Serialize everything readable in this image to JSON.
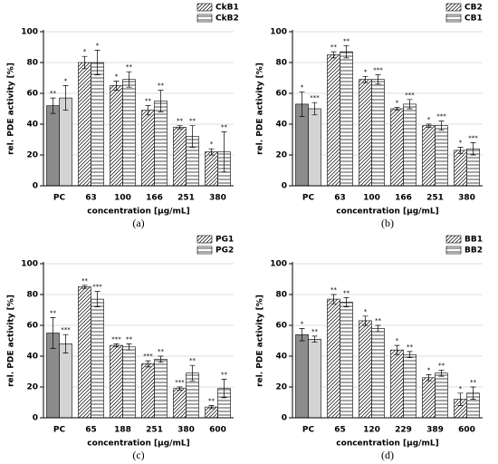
{
  "chart_data": [
    {
      "type": "bar",
      "label": "(a)",
      "xlabel": "concentration [µg/mL]",
      "ylabel": "rel. PDE activity [%]",
      "categories": [
        "PC",
        "63",
        "100",
        "166",
        "251",
        "380"
      ],
      "ylim": [
        0,
        100
      ],
      "yticks": [
        0,
        20,
        40,
        60,
        80,
        100
      ],
      "grid": true,
      "legend": "upper right",
      "series": [
        {
          "name": "CkB1",
          "colors": [
            "#8c8c8c",
            "#ffffff",
            "#ffffff",
            "#ffffff",
            "#ffffff",
            "#ffffff"
          ],
          "patterns": [
            "solid",
            "diagonal",
            "diagonal",
            "diagonal",
            "diagonal",
            "diagonal"
          ],
          "values": [
            52,
            80,
            65,
            49,
            38,
            22
          ],
          "errors": [
            5,
            4,
            3,
            3,
            1,
            2
          ],
          "significance": [
            "**",
            "*",
            "*",
            "**",
            "**",
            "*"
          ]
        },
        {
          "name": "CkB2",
          "colors": [
            "#d4d4d4",
            "#ffffff",
            "#ffffff",
            "#ffffff",
            "#ffffff",
            "#ffffff"
          ],
          "patterns": [
            "solid",
            "horizontal",
            "horizontal",
            "horizontal",
            "horizontal",
            "horizontal"
          ],
          "values": [
            57,
            80,
            69,
            55,
            32,
            22
          ],
          "errors": [
            8,
            8,
            5,
            7,
            7,
            13
          ],
          "significance": [
            "*",
            "*",
            "**",
            "**",
            "**",
            "**"
          ]
        }
      ]
    },
    {
      "type": "bar",
      "label": "(b)",
      "xlabel": "concentration [µg/mL]",
      "ylabel": "rel. PDE activity [%]",
      "categories": [
        "PC",
        "63",
        "100",
        "166",
        "251",
        "380"
      ],
      "ylim": [
        0,
        100
      ],
      "yticks": [
        0,
        20,
        40,
        60,
        80,
        100
      ],
      "grid": true,
      "legend": "upper right",
      "series": [
        {
          "name": "CB2",
          "colors": [
            "#8c8c8c",
            "#ffffff",
            "#ffffff",
            "#ffffff",
            "#ffffff",
            "#ffffff"
          ],
          "patterns": [
            "solid",
            "diagonal",
            "diagonal",
            "diagonal",
            "diagonal",
            "diagonal"
          ],
          "values": [
            53,
            85,
            69,
            50,
            39,
            23
          ],
          "errors": [
            8,
            2,
            2,
            1,
            1,
            2
          ],
          "significance": [
            "*",
            "**",
            "*",
            "*",
            "*",
            "*"
          ]
        },
        {
          "name": "CB1",
          "colors": [
            "#d4d4d4",
            "#ffffff",
            "#ffffff",
            "#ffffff",
            "#ffffff",
            "#ffffff"
          ],
          "patterns": [
            "solid",
            "horizontal",
            "horizontal",
            "horizontal",
            "horizontal",
            "horizontal"
          ],
          "values": [
            50,
            87,
            69,
            53,
            39,
            24
          ],
          "errors": [
            4,
            4,
            3,
            3,
            3,
            4
          ],
          "significance": [
            "***",
            "**",
            "***",
            "***",
            "***",
            "***"
          ]
        }
      ]
    },
    {
      "type": "bar",
      "label": "(c)",
      "xlabel": "concentration [µg/mL]",
      "ylabel": "rel. PDE activity [%]",
      "categories": [
        "PC",
        "65",
        "188",
        "251",
        "380",
        "600"
      ],
      "ylim": [
        0,
        100
      ],
      "yticks": [
        0,
        20,
        40,
        60,
        80,
        100
      ],
      "grid": true,
      "legend": "upper right",
      "series": [
        {
          "name": "PG1",
          "colors": [
            "#8c8c8c",
            "#ffffff",
            "#ffffff",
            "#ffffff",
            "#ffffff",
            "#ffffff"
          ],
          "patterns": [
            "solid",
            "diagonal",
            "diagonal",
            "diagonal",
            "diagonal",
            "diagonal"
          ],
          "values": [
            55,
            85,
            47,
            35,
            19,
            7
          ],
          "errors": [
            10,
            1,
            1,
            2,
            1,
            1
          ],
          "significance": [
            "**",
            "**",
            "***",
            "***",
            "***",
            "**"
          ]
        },
        {
          "name": "PG2",
          "colors": [
            "#d4d4d4",
            "#ffffff",
            "#ffffff",
            "#ffffff",
            "#ffffff",
            "#ffffff"
          ],
          "patterns": [
            "solid",
            "horizontal",
            "horizontal",
            "horizontal",
            "horizontal",
            "horizontal"
          ],
          "values": [
            48,
            77,
            46,
            38,
            29,
            19
          ],
          "errors": [
            6,
            5,
            2,
            2,
            5,
            6
          ],
          "significance": [
            "***",
            "***",
            "**",
            "**",
            "**",
            "**"
          ]
        }
      ]
    },
    {
      "type": "bar",
      "label": "(d)",
      "xlabel": "concentration [µg/mL]",
      "ylabel": "rel. PDE activity [%]",
      "categories": [
        "PC",
        "65",
        "120",
        "229",
        "389",
        "600"
      ],
      "ylim": [
        0,
        100
      ],
      "yticks": [
        0,
        20,
        40,
        60,
        80,
        100
      ],
      "grid": true,
      "legend": "upper right",
      "series": [
        {
          "name": "BB1",
          "colors": [
            "#8c8c8c",
            "#ffffff",
            "#ffffff",
            "#ffffff",
            "#ffffff",
            "#ffffff"
          ],
          "patterns": [
            "solid",
            "diagonal",
            "diagonal",
            "diagonal",
            "diagonal",
            "diagonal"
          ],
          "values": [
            54,
            77,
            63,
            44,
            26,
            12
          ],
          "errors": [
            4,
            3,
            3,
            3,
            2,
            4
          ],
          "significance": [
            "*",
            "**",
            "*",
            "*",
            "*",
            "*"
          ]
        },
        {
          "name": "BB2",
          "colors": [
            "#d4d4d4",
            "#ffffff",
            "#ffffff",
            "#ffffff",
            "#ffffff",
            "#ffffff"
          ],
          "patterns": [
            "solid",
            "horizontal",
            "horizontal",
            "horizontal",
            "horizontal",
            "horizontal"
          ],
          "values": [
            51,
            75,
            58,
            41,
            29,
            16
          ],
          "errors": [
            2,
            3,
            2,
            2,
            2,
            4
          ],
          "significance": [
            "**",
            "**",
            "**",
            "**",
            "**",
            "**"
          ]
        }
      ]
    }
  ]
}
